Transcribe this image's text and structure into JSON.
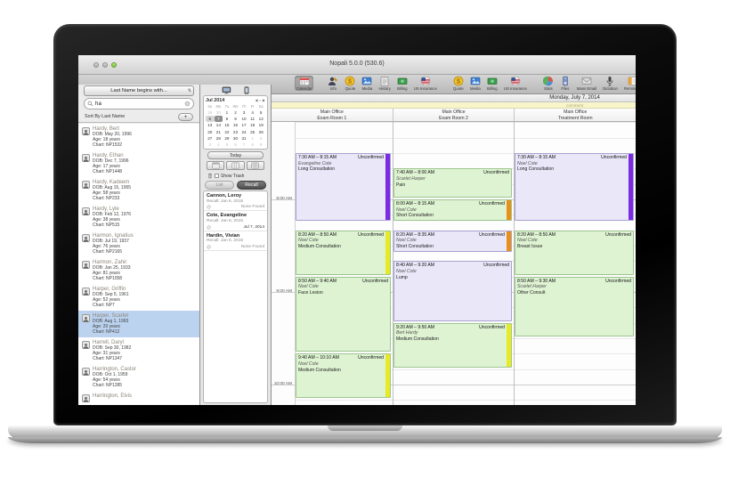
{
  "window": {
    "title": "Nopali 5.0.0 (530.6)"
  },
  "toolbar": {
    "items": [
      {
        "label": "Calendar",
        "icon": "calendar-icon",
        "selected": true,
        "group": 0
      },
      {
        "label": "Info",
        "icon": "info-icon",
        "group": 1
      },
      {
        "label": "Quote",
        "icon": "quote-icon",
        "group": 1
      },
      {
        "label": "Media",
        "icon": "media-icon",
        "group": 1
      },
      {
        "label": "History",
        "icon": "history-icon",
        "group": 1
      },
      {
        "label": "Billing",
        "icon": "billing-icon",
        "group": 1
      },
      {
        "label": "US Insurance",
        "icon": "us-insurance-icon",
        "group": 1
      },
      {
        "label": "Quote",
        "icon": "quote-icon",
        "group": 2
      },
      {
        "label": "Media",
        "icon": "media-icon",
        "group": 2
      },
      {
        "label": "Billing",
        "icon": "billing-icon",
        "group": 2
      },
      {
        "label": "US Insurance",
        "icon": "us-insurance-icon",
        "group": 2
      },
      {
        "label": "Stats",
        "icon": "stats-icon",
        "group": 3
      },
      {
        "label": "Files",
        "icon": "files-icon",
        "group": 3
      },
      {
        "label": "Mass Email",
        "icon": "mass-email-icon",
        "group": 3
      },
      {
        "label": "Dictation",
        "icon": "dictation-icon",
        "group": 3
      },
      {
        "label": "Reminders",
        "icon": "reminders-icon",
        "group": 3
      }
    ]
  },
  "sidebar": {
    "filter_label": "Last Name begins with...",
    "search_value": "ha",
    "sort_label": "Sort By Last Name",
    "add_button": "+",
    "patients": [
      {
        "name": "Hardy, Bert",
        "dob": "DOB: May 20, 1996",
        "age": "Age: 18 years",
        "chart": "Chart: NP1532"
      },
      {
        "name": "Hardy, Ethan",
        "dob": "DOB: Dec 7, 1996",
        "age": "Age: 17 years",
        "chart": "Chart: NP1448"
      },
      {
        "name": "Hardy, Kadeem",
        "dob": "DOB: Aug 15, 1955",
        "age": "Age: 58 years",
        "chart": "Chart: NP233"
      },
      {
        "name": "Hardy, Lyle",
        "dob": "DOB: Feb 12, 1976",
        "age": "Age: 38 years",
        "chart": "Chart: NP515"
      },
      {
        "name": "Harmon, Ignatius",
        "dob": "DOB: Jul 19, 1937",
        "age": "Age: 76 years",
        "chart": "Chart: NP2165"
      },
      {
        "name": "Harmon, Zahir",
        "dob": "DOB: Jan 25, 1933",
        "age": "Age: 81 years",
        "chart": "Chart: NP1058"
      },
      {
        "name": "Harper, Griffin",
        "dob": "DOB: Sep 5, 1961",
        "age": "Age: 52 years",
        "chart": "Chart: NP7"
      },
      {
        "name": "Harper, Scarlet",
        "dob": "DOB: Aug 1, 1993",
        "age": "Age: 20 years",
        "chart": "Chart: NP412",
        "selected": true
      },
      {
        "name": "Harrell, Daryl",
        "dob": "DOB: Sep 30, 1982",
        "age": "Age: 31 years",
        "chart": "Chart: NP1347"
      },
      {
        "name": "Harrington, Castor",
        "dob": "DOB: Oct 1, 1959",
        "age": "Age: 54 years",
        "chart": "Chart: NP1285"
      },
      {
        "name": "Harrington, Elvis",
        "dob": "",
        "age": "",
        "chart": ""
      }
    ]
  },
  "panel": {
    "month_label": "Jul 2014",
    "nav_prev": "◀",
    "nav_dot": "•",
    "nav_next": "▶",
    "day_headers": [
      "Su",
      "Mo",
      "Tu",
      "We",
      "Th",
      "Fr",
      "Sa"
    ],
    "weeks": [
      [
        "29",
        "30",
        "1",
        "2",
        "3",
        "4",
        "5"
      ],
      [
        "6",
        "7",
        "8",
        "9",
        "10",
        "11",
        "12"
      ],
      [
        "13",
        "14",
        "15",
        "16",
        "17",
        "18",
        "19"
      ],
      [
        "20",
        "21",
        "22",
        "23",
        "24",
        "25",
        "26"
      ],
      [
        "27",
        "28",
        "29",
        "30",
        "31",
        "1",
        "2"
      ],
      [
        "3",
        "4",
        "5",
        "6",
        "7",
        "8",
        "9"
      ]
    ],
    "today_day": "6",
    "selected_day": "7",
    "today_button": "Today",
    "show_trash_label": "Show Trash",
    "list_button": "List",
    "recall_button": "Recall",
    "sort_label": "Sort By Date",
    "recalls": [
      {
        "name": "Cannon, Leroy",
        "recall": "Recall: Jan 6, 2015",
        "result": "None Found",
        "none_found": true
      },
      {
        "name": "Cote, Evangeline",
        "recall": "Recall: Jan 6, 2015",
        "result": "Jul 7, 2014",
        "none_found": false
      },
      {
        "name": "Hardin, Vivian",
        "recall": "Recall: Jan 6, 2015",
        "result": "None Found",
        "none_found": true
      }
    ]
  },
  "schedule": {
    "date_label": "Monday, July 7, 2014",
    "comment_label": "comment",
    "columns": [
      {
        "office": "Main Office",
        "room": "Exam Room 1"
      },
      {
        "office": "Main Office",
        "room": "Exam Room 2"
      },
      {
        "office": "Main Office",
        "room": "Treatment Room"
      }
    ],
    "time_labels": [
      "8:00 AM",
      "9:00 AM",
      "10:00 AM"
    ],
    "appointments": [
      {
        "column": 0,
        "time": "7:30 AM – 8:15 AM",
        "patient": "Evangeline Cote",
        "type": "Long Consultation",
        "status": "Unconfirmed",
        "color": "lavender",
        "stripe": "purple"
      },
      {
        "column": 0,
        "time": "8:20 AM – 8:50 AM",
        "patient": "Noel Cote",
        "type": "Medium Consultation",
        "status": "Unconfirmed",
        "color": "green",
        "stripe": "yellow"
      },
      {
        "column": 0,
        "time": "8:50 AM – 9:40 AM",
        "patient": "Noel Cote",
        "type": "Face Lesion",
        "status": "Unconfirmed",
        "color": "green",
        "stripe": "none"
      },
      {
        "column": 0,
        "time": "9:40 AM – 10:10 AM",
        "patient": "Noel Cote",
        "type": "Medium Consultation",
        "status": "Unconfirmed",
        "color": "green",
        "stripe": "yellow"
      },
      {
        "column": 1,
        "time": "7:40 AM – 8:00 AM",
        "patient": "Scarlet Harper",
        "type": "Pain",
        "status": "Unconfirmed",
        "color": "green",
        "stripe": "none"
      },
      {
        "column": 1,
        "time": "8:00 AM – 8:15 AM",
        "patient": "Noel Cote",
        "type": "Short Consultation",
        "status": "Unconfirmed",
        "color": "green",
        "stripe": "orange"
      },
      {
        "column": 1,
        "time": "8:20 AM – 8:35 AM",
        "patient": "Noel Cote",
        "type": "Short Consultation",
        "status": "Unconfirmed",
        "color": "lavender",
        "stripe": "orange"
      },
      {
        "column": 1,
        "time": "8:40 AM – 9:20 AM",
        "patient": "Noel Cote",
        "type": "Lump",
        "status": "Unconfirmed",
        "color": "lavender",
        "stripe": "none"
      },
      {
        "column": 1,
        "time": "9:20 AM – 9:50 AM",
        "patient": "Bert Hardy",
        "type": "Medium Consultation",
        "status": "Unconfirmed",
        "color": "green",
        "stripe": "yellow"
      },
      {
        "column": 2,
        "time": "7:30 AM – 8:15 AM",
        "patient": "Noel Cote",
        "type": "Long Consultation",
        "status": "Unconfirmed",
        "color": "lavender",
        "stripe": "purple"
      },
      {
        "column": 2,
        "time": "8:20 AM – 8:50 AM",
        "patient": "Noel Cote",
        "type": "Breast Issue",
        "status": "Unconfirmed",
        "color": "green",
        "stripe": "none"
      },
      {
        "column": 2,
        "time": "8:50 AM – 9:30 AM",
        "patient": "Scarlet Harper",
        "type": "Other Consult",
        "status": "Unconfirmed",
        "color": "green",
        "stripe": "none"
      }
    ],
    "colors": {
      "lavender": "#e9e7f8",
      "green": "#def3d2",
      "purple": "#7c2be2",
      "orange": "#e89018",
      "yellow": "#e8ea25"
    }
  }
}
